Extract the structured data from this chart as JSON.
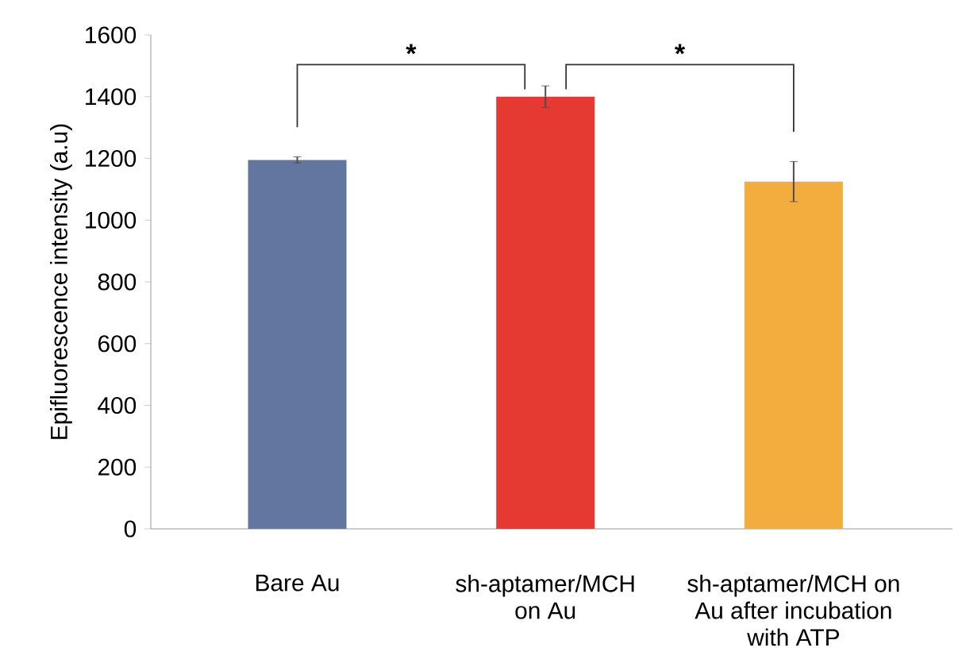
{
  "chart_data": {
    "type": "bar",
    "ylabel": "Epifluorescence intensity (a.u)",
    "categories": [
      "Bare Au",
      "sh-aptamer/MCH on Au",
      "sh-aptamer/MCH on Au after incubation with ATP"
    ],
    "values": [
      1195,
      1400,
      1125
    ],
    "errors": [
      10,
      35,
      65
    ],
    "colors": [
      "#6276a0",
      "#e53a31",
      "#f2ad3e"
    ],
    "ylim": [
      0,
      1600
    ],
    "yticks": [
      0,
      200,
      400,
      600,
      800,
      1000,
      1200,
      1400,
      1600
    ],
    "annotations": [
      "*",
      "*"
    ]
  }
}
